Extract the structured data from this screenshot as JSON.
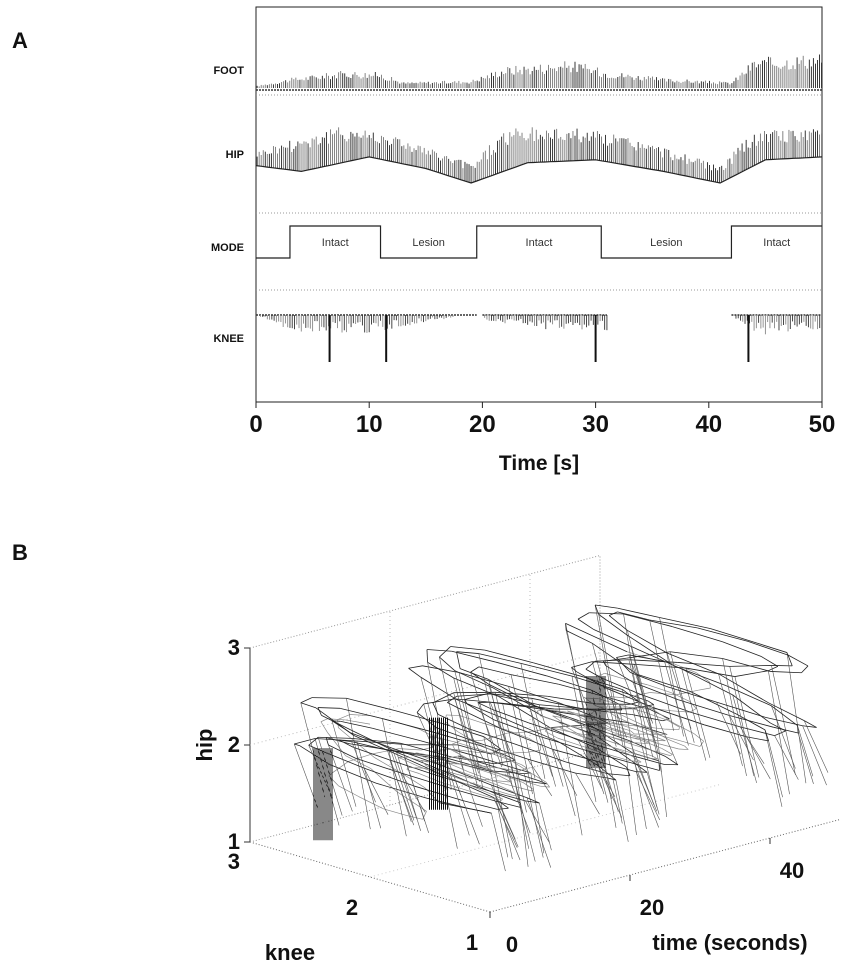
{
  "panel_a_label": "A",
  "panel_b_label": "B",
  "chart_data": [
    {
      "type": "line",
      "panel": "A",
      "xlabel": "Time [s]",
      "xlim": [
        0,
        50
      ],
      "xticks": [
        0,
        10,
        20,
        30,
        40,
        50
      ],
      "grid": false,
      "traces": [
        {
          "name": "FOOT",
          "kind": "oscillation",
          "envelope_low": [
            {
              "x": 0,
              "y": 0.05
            },
            {
              "x": 10,
              "y": 0.05
            },
            {
              "x": 20,
              "y": 0.05
            },
            {
              "x": 30,
              "y": 0.05
            },
            {
              "x": 42,
              "y": 0.05
            },
            {
              "x": 50,
              "y": 0.05
            }
          ],
          "envelope_high": [
            {
              "x": 0,
              "y": 0.1
            },
            {
              "x": 3,
              "y": 0.3
            },
            {
              "x": 8,
              "y": 0.5
            },
            {
              "x": 11,
              "y": 0.45
            },
            {
              "x": 13,
              "y": 0.2
            },
            {
              "x": 19,
              "y": 0.25
            },
            {
              "x": 22,
              "y": 0.6
            },
            {
              "x": 28,
              "y": 0.75
            },
            {
              "x": 31,
              "y": 0.5
            },
            {
              "x": 36,
              "y": 0.3
            },
            {
              "x": 42,
              "y": 0.2
            },
            {
              "x": 44,
              "y": 0.8
            },
            {
              "x": 50,
              "y": 0.95
            }
          ]
        },
        {
          "name": "HIP",
          "kind": "oscillation",
          "envelope_low": [
            {
              "x": 0,
              "y": 0.3
            },
            {
              "x": 4,
              "y": 0.2
            },
            {
              "x": 10,
              "y": 0.45
            },
            {
              "x": 15,
              "y": 0.25
            },
            {
              "x": 19,
              "y": 0.0
            },
            {
              "x": 24,
              "y": 0.35
            },
            {
              "x": 30,
              "y": 0.4
            },
            {
              "x": 36,
              "y": 0.2
            },
            {
              "x": 41,
              "y": 0.0
            },
            {
              "x": 45,
              "y": 0.4
            },
            {
              "x": 50,
              "y": 0.45
            }
          ],
          "envelope_high": [
            {
              "x": 0,
              "y": 0.55
            },
            {
              "x": 4,
              "y": 0.85
            },
            {
              "x": 8,
              "y": 1.0
            },
            {
              "x": 12,
              "y": 0.85
            },
            {
              "x": 16,
              "y": 0.55
            },
            {
              "x": 19,
              "y": 0.35
            },
            {
              "x": 22,
              "y": 0.95
            },
            {
              "x": 28,
              "y": 0.98
            },
            {
              "x": 33,
              "y": 0.8
            },
            {
              "x": 38,
              "y": 0.5
            },
            {
              "x": 41,
              "y": 0.3
            },
            {
              "x": 44,
              "y": 0.9
            },
            {
              "x": 50,
              "y": 0.95
            }
          ]
        },
        {
          "name": "MODE",
          "kind": "step",
          "segments": [
            {
              "x0": 0,
              "x1": 3,
              "level": 0,
              "label": ""
            },
            {
              "x0": 3,
              "x1": 11,
              "level": 1,
              "label": "Intact"
            },
            {
              "x0": 11,
              "x1": 19.5,
              "level": 0,
              "label": "Lesion"
            },
            {
              "x0": 19.5,
              "x1": 30.5,
              "level": 1,
              "label": "Intact"
            },
            {
              "x0": 30.5,
              "x1": 42,
              "level": 0,
              "label": "Lesion"
            },
            {
              "x0": 42,
              "x1": 50,
              "level": 1,
              "label": "Intact"
            }
          ]
        },
        {
          "name": "KNEE",
          "kind": "spikes",
          "baseline_segments": [
            [
              0,
              19.5
            ],
            [
              20,
              31
            ],
            [
              42,
              50
            ]
          ],
          "envelope_low": [
            {
              "x": 0,
              "y": 0.0
            },
            {
              "x": 3,
              "y": 0.35
            },
            {
              "x": 10,
              "y": 0.4
            },
            {
              "x": 15,
              "y": 0.15
            },
            {
              "x": 19,
              "y": 0.0
            },
            {
              "x": 20,
              "y": 0.1
            },
            {
              "x": 25,
              "y": 0.3
            },
            {
              "x": 31,
              "y": 0.35
            },
            {
              "x": 33,
              "y": 0.1
            },
            {
              "x": 36,
              "y": 0.0
            },
            {
              "x": 42,
              "y": 0.0
            },
            {
              "x": 44,
              "y": 0.45
            },
            {
              "x": 50,
              "y": 0.3
            }
          ],
          "large_spikes": [
            6.5,
            11.5,
            30,
            43.5
          ]
        }
      ]
    },
    {
      "type": "line3d",
      "panel": "B",
      "xlabel": "time (seconds)",
      "ylabel": "knee",
      "zlabel": "hip",
      "xticks": [
        0,
        20,
        40
      ],
      "yticks": [
        1,
        2,
        3
      ],
      "zticks": [
        1,
        2,
        3
      ],
      "xlim": [
        0,
        50
      ],
      "ylim": [
        1,
        3
      ],
      "zlim": [
        1,
        3
      ],
      "grid": true,
      "dense_bands_time": [
        {
          "from": 3,
          "to": 11
        },
        {
          "from": 19.5,
          "to": 30.5
        },
        {
          "from": 42,
          "to": 50
        }
      ]
    }
  ]
}
